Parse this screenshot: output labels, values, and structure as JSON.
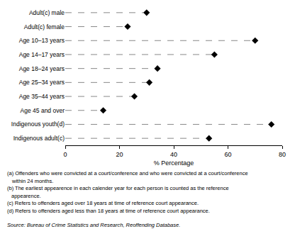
{
  "chart_data": {
    "type": "scatter",
    "orientation": "horizontal",
    "x_label": "% Percentage",
    "categories": [
      "Adult(c) male",
      "Adult(c) female",
      "Age 10–13 years",
      "Age 14–17 years",
      "Age 18–24 years",
      "Age 25–34 years",
      "Age 35–44 years",
      "Age 45 and over",
      "Indigenous youth(d)",
      "Indigenous adult(c)"
    ],
    "values": [
      30,
      23,
      70,
      55,
      34,
      31,
      25.5,
      14,
      76,
      53
    ],
    "color": "#000000",
    "marker": "diamond",
    "line_style": "dashed",
    "xlim": [
      0,
      80
    ],
    "xticks": [
      0,
      20,
      40,
      60,
      80
    ],
    "grid": false,
    "annotations": [
      "(a) Offenders who were convicted at a court/conference and who were convicted at a court/conference",
      "within 24 months.",
      "(b) The earliest appearence in each calender year for each person is counted as the reference",
      "appearence.",
      "(c) Refers to offenders aged over 18 years at time of reference court appearance.",
      "(d) Refers to offenders aged less than 18 years at time of reference court appearance."
    ],
    "source": "Source: Bureau of Crime Statistics and Research, Reoffending Database."
  }
}
